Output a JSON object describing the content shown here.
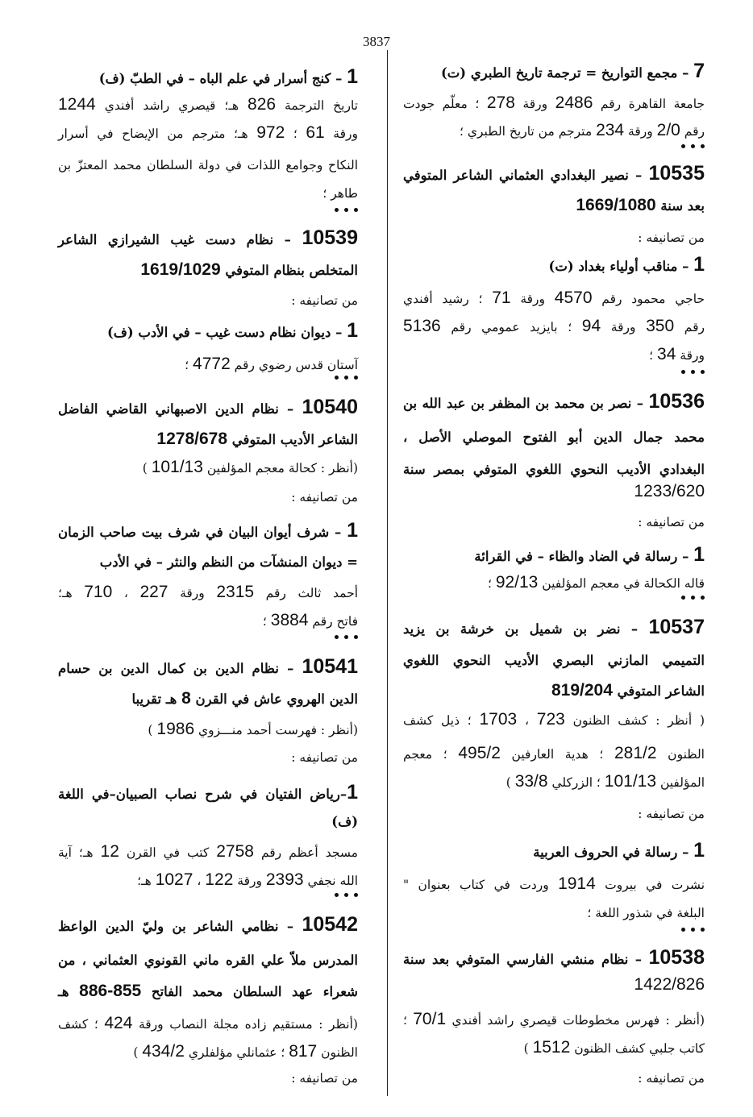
{
  "page_number": "3837",
  "right_column": [
    "7 – مجمع التواريخ = ترجمة تاريخ الطبري (ت)",
    "جامعة القاهرة رقم 2486 ورقة 278 ؛ معلّم جودت",
    "رقم 2/0 ورقة 234 مترجم من تاريخ الطبري ؛",
    "10535 – نصير البغدادي العثماني الشاعر المتوفي",
    "بعد سنة 1669/1080",
    "من تصانيفه :",
    "1 – مناقب أولياء بغداد (ت)",
    "حاجي محمود رقم 4570 ورقة 71 ؛ رشيد أفندي",
    "رقم 350 ورقة 94 ؛ بايزيد عمومي رقم 5136",
    "ورقة 34 ؛",
    "10536 – نصر بن محمد بن المظفر بن عبد الله بن",
    "محمد جمال الدين أبو الفتوح الموصلي الأصل ،",
    "البغدادي الأديب النحوي اللغوي المتوفي بمصر سنة",
    "1233/620",
    "من تصانيفه :",
    "1 – رسالة في الضاد والظاء – في القرائة",
    "قاله الكحالة في معجم المؤلفين 92/13 ؛",
    "10537 – نضر بن شميل بن خرشة بن يزيد",
    "التميمي المازني البصري الأديب النحوي اللغوي",
    "الشاعر المتوفي 819/204",
    "( أنظر : كشف الظنون 723 ، 1703 ؛ ذيل كشف",
    "الظنون 281/2 ؛ هدية العارفين 495/2 ؛ معجم",
    "المؤلفين 101/13 ؛ الزركلي 33/8 )",
    "من تصانيفه :",
    "1 – رسالة في الحروف العربية",
    "نشرت في بيروت 1914 وردت في كتاب بعنوان \"",
    "البلغة في شذور اللغة ؛",
    "10538 – نظام منشي الفارسي المتوفي بعد سنة",
    "1422/826",
    "(أنظر : فهرس مخطوطات قيصري راشد أفندي 70/1 ؛",
    "كاتب جلبي كشف الظنون 1512 )",
    "من تصانيفه :"
  ],
  "left_column": [
    "1 – كنج أسرار في علم الباه – في الطبّ (ف)",
    "تاريخ الترجمة 826 هـ؛ قيصري راشد أفندي 1244",
    "ورقة 61 ؛ 972 هـ؛ مترجم من الإيضاح في أسرار",
    "النكاح وجوامع اللذات في دولة السلطان محمد المعتزّ بن",
    "طاهر ؛",
    "10539 – نظام دست غيب الشيرازي الشاعر",
    "المتخلص بنظام المتوفي 1619/1029",
    "من تصانيفه :",
    "1 – ديوان نظام دست غيب – في الأدب (ف)",
    "آستان قدس رضوي رقم 4772 ؛",
    "10540 – نظام الدين الاصبهاني القاضي الفاضل",
    "الشاعر الأديب المتوفي 1278/678",
    "(أنظر : كحالة معجم المؤلفين 101/13 )",
    "من تصانيفه :",
    "1 – شرف أيوان البيان في شرف بيت صاحب الزمان",
    "= ديوان المنشآت من النظم والنثر – في الأدب",
    "أحمد ثالث رقم 2315 ورقة 227 ، 710 هـ؛",
    "فاتح رقم 3884 ؛",
    "10541 – نظام الدين بن كمال الدين بن حسام",
    "الدين الهروي عاش في القرن 8 هـ تقريبا",
    "(أنظر : فهرست أحمد منـــزوي 1986 )",
    "من تصانيفه :",
    "1–رياض الفتيان في شرح نصاب الصبيان–في اللغة",
    "(ف)",
    "مسجد أعظم رقم 2758 كتب في القرن 12 هـ؛ آية",
    "الله نجفي 2393 ورقة 122 ، 1027 هـ؛",
    "10542 – نظامي الشاعر بن وليّ الدين الواعظ",
    "المدرس ملاّ علي القره ماني القونوي العثماني ، من",
    "شعراء عهد السلطان محمد الفاتح 855-886 هـ",
    "(أنظر : مستقيم زاده مجلة النصاب ورقة 424 ؛ كشف",
    "الظنون 817 ؛ عثمانلي مؤلفلري 434/2 )",
    "من تصانيفه :"
  ]
}
